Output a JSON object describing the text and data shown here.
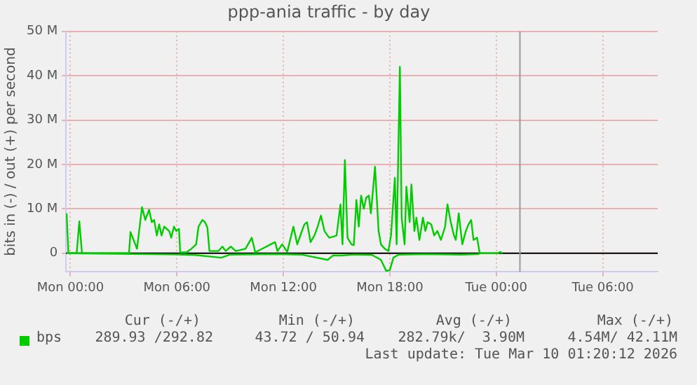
{
  "chart_data": {
    "type": "line",
    "title": "ppp-ania traffic - by day",
    "ylabel": "bits in (-) / out (+) per second",
    "xlim": [
      "2026-03-08T23:45",
      "2026-03-10T09:06"
    ],
    "xticks": [
      {
        "value": "2026-03-09T00:00",
        "label": "Mon 00:00"
      },
      {
        "value": "2026-03-09T06:00",
        "label": "Mon 06:00"
      },
      {
        "value": "2026-03-09T12:00",
        "label": "Mon 12:00"
      },
      {
        "value": "2026-03-09T18:00",
        "label": "Mon 18:00"
      },
      {
        "value": "2026-03-10T00:00",
        "label": "Tue 00:00"
      },
      {
        "value": "2026-03-10T06:00",
        "label": "Tue 06:00"
      }
    ],
    "ylim": [
      -4.2,
      50
    ],
    "yticks": [
      {
        "value": 0,
        "label": "0"
      },
      {
        "value": 10,
        "label": "10 M"
      },
      {
        "value": 20,
        "label": "20 M"
      },
      {
        "value": 30,
        "label": "30 M"
      },
      {
        "value": 40,
        "label": "40 M"
      },
      {
        "value": 50,
        "label": "50 M"
      }
    ],
    "grid": true,
    "legend": "bottom",
    "marker": "none",
    "line_style": "solid",
    "ref_lines": [
      {
        "axis": "x",
        "value": "2026-03-10T01:20",
        "color": "#999999"
      }
    ],
    "annotations": [
      "Cur (-/+)",
      "Min (-/+)",
      "Avg (-/+)",
      "Max (-/+)",
      "289.93 /292.82",
      "43.72 / 50.94",
      "282.79k/  3.90M",
      "4.54M/ 42.11M",
      "Last update: Tue Mar 10 01:20:12 2026"
    ],
    "series": [
      {
        "name": "bps",
        "color": "#00cc00",
        "x": [
          "2026-03-08T23:47",
          "2026-03-08T23:53",
          "2026-03-09T00:21",
          "2026-03-09T00:30",
          "2026-03-09T00:39",
          "2026-03-09T03:18",
          "2026-03-09T03:23",
          "2026-03-09T03:45",
          "2026-03-09T04:02",
          "2026-03-09T04:13",
          "2026-03-09T04:26",
          "2026-03-09T04:35",
          "2026-03-09T04:43",
          "2026-03-09T04:52",
          "2026-03-09T05:00",
          "2026-03-09T05:08",
          "2026-03-09T05:17",
          "2026-03-09T05:34",
          "2026-03-09T05:41",
          "2026-03-09T05:50",
          "2026-03-09T05:58",
          "2026-03-09T06:07",
          "2026-03-09T06:11",
          "2026-03-09T06:32",
          "2026-03-09T06:49",
          "2026-03-09T07:05",
          "2026-03-09T07:13",
          "2026-03-09T07:26",
          "2026-03-09T07:35",
          "2026-03-09T07:43",
          "2026-03-09T07:50",
          "2026-03-09T08:20",
          "2026-03-09T08:34",
          "2026-03-09T08:45",
          "2026-03-09T09:02",
          "2026-03-09T09:19",
          "2026-03-09T09:52",
          "2026-03-09T10:13",
          "2026-03-09T10:25",
          "2026-03-09T11:32",
          "2026-03-09T11:40",
          "2026-03-09T11:56",
          "2026-03-09T12:13",
          "2026-03-09T12:34",
          "2026-03-09T12:47",
          "2026-03-09T13:00",
          "2026-03-09T13:11",
          "2026-03-09T13:20",
          "2026-03-09T13:32",
          "2026-03-09T13:45",
          "2026-03-09T13:56",
          "2026-03-09T14:07",
          "2026-03-09T14:19",
          "2026-03-09T14:35",
          "2026-03-09T14:52",
          "2026-03-09T15:00",
          "2026-03-09T15:13",
          "2026-03-09T15:20",
          "2026-03-09T15:28",
          "2026-03-09T15:37",
          "2026-03-09T15:50",
          "2026-03-09T15:58",
          "2026-03-09T16:07",
          "2026-03-09T16:15",
          "2026-03-09T16:23",
          "2026-03-09T16:32",
          "2026-03-09T16:40",
          "2026-03-09T16:49",
          "2026-03-09T16:56",
          "2026-03-09T17:10",
          "2026-03-09T17:22",
          "2026-03-09T17:30",
          "2026-03-09T17:43",
          "2026-03-09T17:55",
          "2026-03-09T18:04",
          "2026-03-09T18:17",
          "2026-03-09T18:23",
          "2026-03-09T18:34",
          "2026-03-09T18:40",
          "2026-03-09T18:50",
          "2026-03-09T18:56",
          "2026-03-09T19:07",
          "2026-03-09T19:13",
          "2026-03-09T19:23",
          "2026-03-09T19:30",
          "2026-03-09T19:40",
          "2026-03-09T19:52",
          "2026-03-09T20:00",
          "2026-03-09T20:08",
          "2026-03-09T20:20",
          "2026-03-09T20:30",
          "2026-03-09T20:41",
          "2026-03-09T20:53",
          "2026-03-09T21:07",
          "2026-03-09T21:15",
          "2026-03-09T21:26",
          "2026-03-09T21:37",
          "2026-03-09T21:43",
          "2026-03-09T21:53",
          "2026-03-09T22:05",
          "2026-03-09T22:17",
          "2026-03-09T22:26",
          "2026-03-09T22:35",
          "2026-03-09T22:43",
          "2026-03-09T22:55",
          "2026-03-09T23:04",
          "2026-03-10T00:06",
          "2026-03-10T00:13",
          "2026-03-10T00:21"
        ],
        "values": [
          9,
          0,
          0,
          7.2,
          0,
          0,
          4.8,
          1,
          10.4,
          7.5,
          9.8,
          7,
          7.5,
          4,
          6.5,
          4,
          6,
          5,
          3.5,
          6,
          5,
          5.5,
          0.2,
          0.2,
          1,
          2,
          6,
          7.5,
          7,
          5.8,
          0.5,
          0.5,
          1.5,
          0.5,
          1.5,
          0.5,
          1,
          3.5,
          0.2,
          2.5,
          0.5,
          2,
          0.3,
          6,
          2,
          4.5,
          6.5,
          7,
          2.5,
          4,
          6,
          8.5,
          5,
          3.5,
          3.8,
          4,
          11,
          2,
          21,
          3.5,
          2,
          1.8,
          12,
          6,
          13,
          10,
          12.5,
          13,
          9,
          19.5,
          5,
          2,
          1,
          0.5,
          4,
          17,
          2,
          42,
          8,
          2,
          15,
          7,
          15.5,
          5,
          8,
          3,
          8,
          5,
          7,
          6.5,
          4,
          5,
          3,
          6,
          11,
          7,
          4,
          3,
          9,
          2,
          5,
          6.5,
          7.5,
          3,
          3.5,
          0,
          0,
          0.3,
          0
        ]
      },
      {
        "color": "#00cc00",
        "x": [
          "2026-03-08T23:47",
          "2026-03-09T06:12",
          "2026-03-09T07:00",
          "2026-03-09T08:30",
          "2026-03-09T09:00",
          "2026-03-09T11:30",
          "2026-03-09T13:00",
          "2026-03-09T14:30",
          "2026-03-09T14:48",
          "2026-03-09T15:18",
          "2026-03-09T16:00",
          "2026-03-09T17:00",
          "2026-03-09T17:30",
          "2026-03-09T17:48",
          "2026-03-09T18:00",
          "2026-03-09T18:12",
          "2026-03-09T18:30",
          "2026-03-09T20:00",
          "2026-03-09T22:00",
          "2026-03-09T23:00",
          "2026-03-09T23:06"
        ],
        "values": [
          0,
          -0.3,
          -0.4,
          -1,
          -0.3,
          -0.2,
          -0.3,
          -1.5,
          -0.5,
          -0.5,
          -0.3,
          -0.4,
          -1.5,
          -4,
          -3.8,
          -1,
          -0.3,
          -0.2,
          -0.3,
          -0.2,
          0
        ]
      }
    ]
  }
}
